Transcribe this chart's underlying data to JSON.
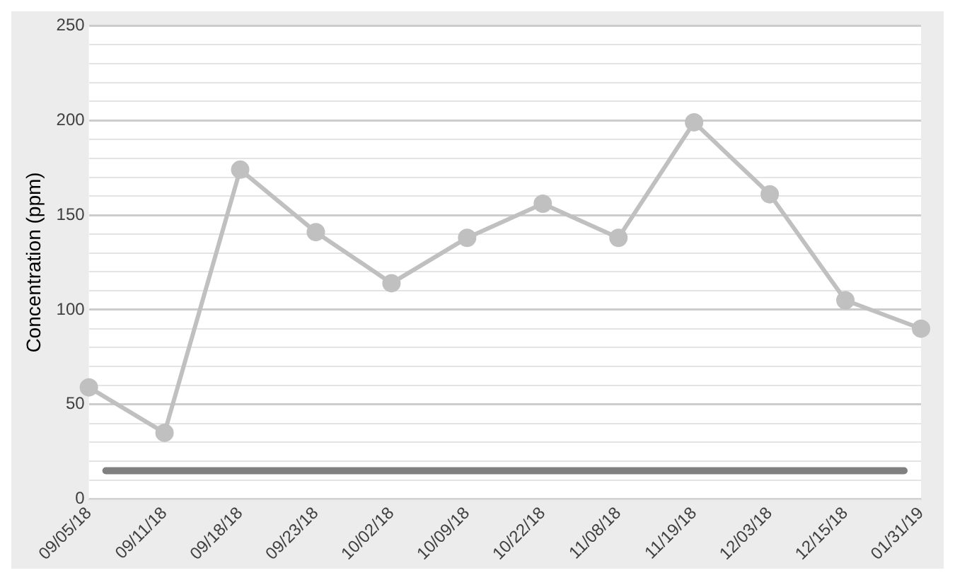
{
  "chart_data": {
    "type": "line",
    "ylabel": "Concentration (ppm)",
    "categories": [
      "09/05/18",
      "09/11/18",
      "09/18/18",
      "09/23/18",
      "10/02/18",
      "10/09/18",
      "10/22/18",
      "11/08/18",
      "11/19/18",
      "12/03/18",
      "12/15/18",
      "01/31/19"
    ],
    "series": [
      {
        "color": "#c0c0c0",
        "values": [
          59,
          35,
          174,
          141,
          114,
          138,
          156,
          138,
          199,
          161,
          105,
          90
        ]
      }
    ],
    "ylim": [
      0,
      250
    ],
    "yticks": [
      0,
      {
        "value": 10,
        "label": null
      },
      {
        "value": 20,
        "label": null
      },
      {
        "value": 30,
        "label": null
      },
      {
        "value": 40,
        "label": null
      },
      50,
      {
        "value": 60,
        "label": null
      },
      {
        "value": 70,
        "label": null
      },
      {
        "value": 80,
        "label": null
      },
      {
        "value": 90,
        "label": null
      },
      100,
      {
        "value": 110,
        "label": null
      },
      {
        "value": 120,
        "label": null
      },
      {
        "value": 130,
        "label": null
      },
      {
        "value": 140,
        "label": null
      },
      150,
      {
        "value": 160,
        "label": null
      },
      {
        "value": 170,
        "label": null
      },
      {
        "value": 180,
        "label": null
      },
      {
        "value": 190,
        "label": null
      },
      200,
      {
        "value": 210,
        "label": null
      },
      {
        "value": 220,
        "label": null
      },
      {
        "value": 230,
        "label": null
      },
      {
        "value": 240,
        "label": null
      },
      250
    ],
    "grid": "y",
    "marker": "circle",
    "line_style": "solid",
    "legend": false,
    "ref_lines": [
      {
        "axis": "y",
        "value": 15,
        "label": null,
        "color": "#808080"
      }
    ]
  }
}
